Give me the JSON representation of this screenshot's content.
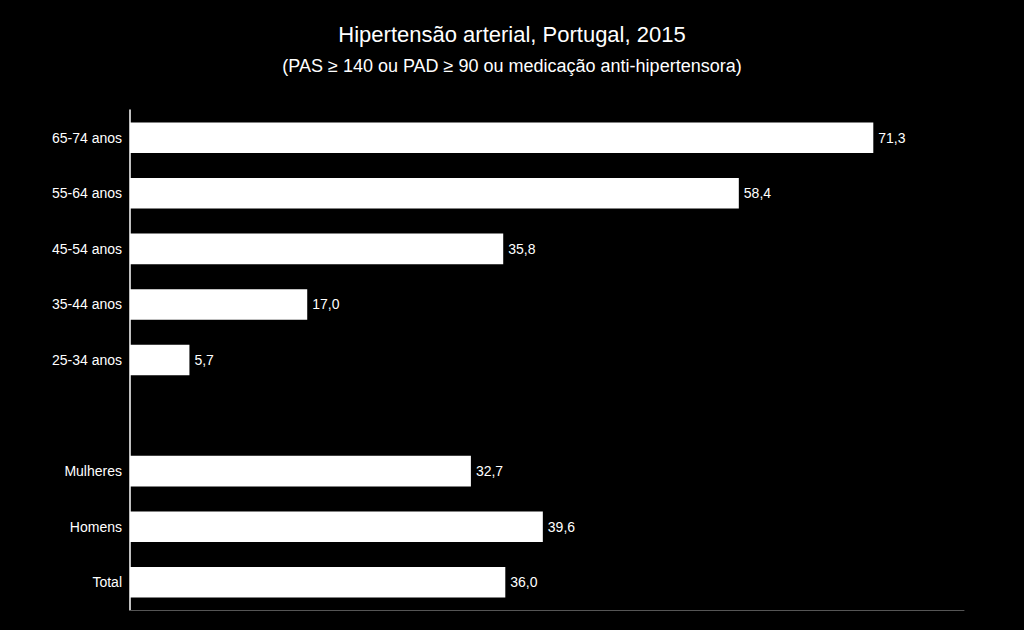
{
  "chart_data": {
    "type": "bar",
    "orientation": "horizontal",
    "title": "Hipertensão arterial, Portugal, 2015",
    "subtitle": "(PAS ≥ 140 ou PAD ≥ 90 ou medicação anti-hipertensora)",
    "categories": [
      "65-74 anos",
      "55-64 anos",
      "45-54 anos",
      "35-44 anos",
      "25-34 anos",
      null,
      "Mulheres",
      "Homens",
      "Total"
    ],
    "values": [
      71.3,
      58.4,
      35.8,
      17.0,
      5.7,
      null,
      32.7,
      39.6,
      36.0
    ],
    "value_labels": [
      "71,3",
      "58,4",
      "35,8",
      "17,0",
      "5,7",
      null,
      "32,7",
      "39,6",
      "36,0"
    ],
    "color": "#ffffff",
    "xlim": [
      0,
      80
    ],
    "data_labels": true,
    "tick_labels": "y",
    "grid": false
  }
}
